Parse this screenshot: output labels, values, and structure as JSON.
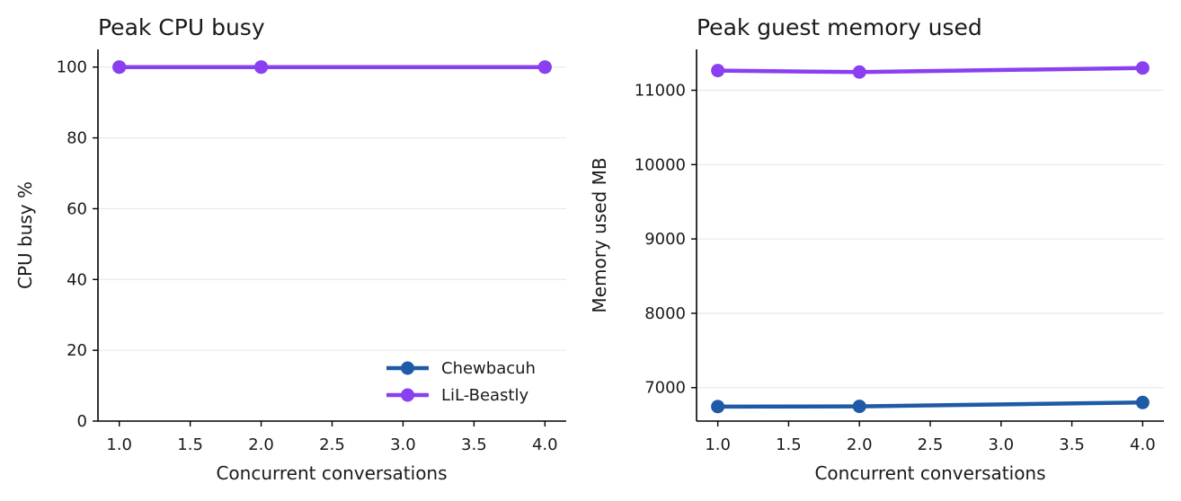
{
  "chart_data": [
    {
      "type": "line",
      "title": "Peak CPU busy",
      "xlabel": "Concurrent conversations",
      "ylabel": "CPU busy %",
      "xlim": [
        0.85,
        4.15
      ],
      "ylim": [
        0,
        105
      ],
      "x_ticks": [
        1.0,
        1.5,
        2.0,
        2.5,
        3.0,
        3.5,
        4.0
      ],
      "x_tick_labels": [
        "1.0",
        "1.5",
        "2.0",
        "2.5",
        "3.0",
        "3.5",
        "4.0"
      ],
      "y_ticks": [
        0,
        20,
        40,
        60,
        80,
        100
      ],
      "y_tick_labels": [
        "0",
        "20",
        "40",
        "60",
        "80",
        "100"
      ],
      "grid": "y",
      "legend": "lower-right",
      "series": [
        {
          "name": "Chewbacuh",
          "color": "#1f5aa6",
          "x": [
            1,
            2,
            4
          ],
          "values": [
            100,
            100,
            100
          ]
        },
        {
          "name": "LiL-Beastly",
          "color": "#8a3ff0",
          "x": [
            1,
            2,
            4
          ],
          "values": [
            100,
            100,
            100
          ]
        }
      ]
    },
    {
      "type": "line",
      "title": "Peak guest memory used",
      "xlabel": "Concurrent conversations",
      "ylabel": "Memory used MB",
      "xlim": [
        0.85,
        4.15
      ],
      "ylim": [
        6550,
        11550
      ],
      "x_ticks": [
        1.0,
        1.5,
        2.0,
        2.5,
        3.0,
        3.5,
        4.0
      ],
      "x_tick_labels": [
        "1.0",
        "1.5",
        "2.0",
        "2.5",
        "3.0",
        "3.5",
        "4.0"
      ],
      "y_ticks": [
        7000,
        8000,
        9000,
        10000,
        11000
      ],
      "y_tick_labels": [
        "7000",
        "8000",
        "9000",
        "10000",
        "11000"
      ],
      "grid": "y",
      "legend": "none",
      "series": [
        {
          "name": "Chewbacuh",
          "color": "#1f5aa6",
          "x": [
            1,
            2,
            4
          ],
          "values": [
            6745,
            6748,
            6800
          ]
        },
        {
          "name": "LiL-Beastly",
          "color": "#8a3ff0",
          "x": [
            1,
            2,
            4
          ],
          "values": [
            11265,
            11245,
            11300
          ]
        }
      ]
    }
  ]
}
